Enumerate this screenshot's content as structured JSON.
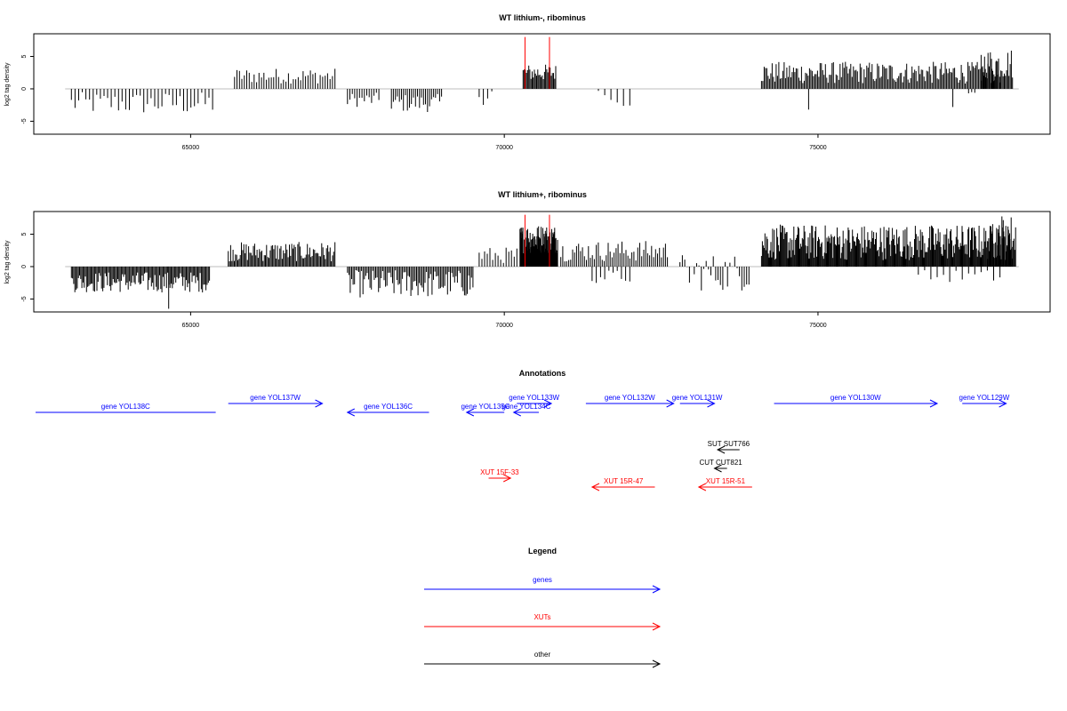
{
  "chart_data": [
    {
      "type": "bar",
      "title": "WT lithium-, ribominus",
      "ylabel": "log2 tag density",
      "xlim": [
        62500,
        78700
      ],
      "ylim": [
        -7,
        8.5
      ],
      "xticks": [
        65000,
        70000,
        75000
      ],
      "yticks": [
        -5,
        0,
        5
      ],
      "baseline": 0,
      "highlight_color": "#ff0000",
      "bar_color": "#000000",
      "highlights": [
        {
          "x": 70330,
          "y": 8
        },
        {
          "x": 70720,
          "y": 8
        }
      ],
      "segments": [
        {
          "start": 63100,
          "end": 65350,
          "count": 40,
          "min": -4,
          "max": -0.5
        },
        {
          "start": 65700,
          "end": 67300,
          "count": 42,
          "min": 0.8,
          "max": 3.2
        },
        {
          "start": 67500,
          "end": 68000,
          "count": 14,
          "min": -2.8,
          "max": -0.6
        },
        {
          "start": 68200,
          "end": 69000,
          "count": 26,
          "min": -3.6,
          "max": -0.8
        },
        {
          "start": 69600,
          "end": 69800,
          "count": 4,
          "min": -2.5,
          "max": 1.5
        },
        {
          "start": 70300,
          "end": 70820,
          "count": 30,
          "min": 1.2,
          "max": 3.8
        },
        {
          "start": 71500,
          "end": 71600,
          "count": 2,
          "min": -1,
          "max": 1
        },
        {
          "start": 71700,
          "end": 72000,
          "count": 4,
          "min": -2.8,
          "max": -1
        },
        {
          "start": 74100,
          "end": 77900,
          "count": 180,
          "min": 0.8,
          "max": 4.2
        },
        {
          "start": 74850,
          "end": 74850,
          "count": 1,
          "min": -3.2,
          "max": -3.2
        },
        {
          "start": 77150,
          "end": 77150,
          "count": 1,
          "min": -2.8,
          "max": -2.8
        },
        {
          "start": 77400,
          "end": 77500,
          "count": 3,
          "min": -1,
          "max": -0.5
        },
        {
          "start": 77600,
          "end": 78100,
          "count": 28,
          "min": 1.5,
          "max": 6.3
        }
      ]
    },
    {
      "type": "bar",
      "title": "WT lithium+, ribominus",
      "ylabel": "log2 tag density",
      "xlim": [
        62500,
        78700
      ],
      "ylim": [
        -7,
        8.5
      ],
      "xticks": [
        65000,
        70000,
        75000
      ],
      "yticks": [
        -5,
        0,
        5
      ],
      "baseline": 0,
      "highlight_color": "#ff0000",
      "bar_color": "#000000",
      "highlights": [
        {
          "x": 70330,
          "y": 8
        },
        {
          "x": 70720,
          "y": 8
        }
      ],
      "segments": [
        {
          "start": 63100,
          "end": 65300,
          "count": 120,
          "min": -4,
          "max": -0.8
        },
        {
          "start": 64650,
          "end": 64650,
          "count": 1,
          "min": -6.5,
          "max": -6.5
        },
        {
          "start": 65600,
          "end": 67300,
          "count": 90,
          "min": 0.8,
          "max": 3.8
        },
        {
          "start": 67500,
          "end": 69500,
          "count": 90,
          "min": -4.8,
          "max": -0.5
        },
        {
          "start": 69600,
          "end": 70200,
          "count": 15,
          "min": 0.5,
          "max": 3
        },
        {
          "start": 70250,
          "end": 70850,
          "count": 90,
          "min": 2,
          "max": 6.5
        },
        {
          "start": 70900,
          "end": 72600,
          "count": 55,
          "min": 0.8,
          "max": 4
        },
        {
          "start": 71400,
          "end": 72000,
          "count": 10,
          "min": -2.6,
          "max": -0.5
        },
        {
          "start": 72800,
          "end": 73900,
          "count": 30,
          "min": -3.8,
          "max": 2
        },
        {
          "start": 74100,
          "end": 78150,
          "count": 300,
          "min": 1,
          "max": 6.5
        },
        {
          "start": 77700,
          "end": 78100,
          "count": 20,
          "min": 3,
          "max": 8.2
        },
        {
          "start": 76600,
          "end": 77900,
          "count": 14,
          "min": -2.5,
          "max": -0.5
        }
      ]
    }
  ],
  "annotations": {
    "title": "Annotations",
    "xlim": [
      62500,
      78700
    ],
    "features": [
      {
        "label": "gene YOL138C",
        "kind": "gene",
        "start": 62500,
        "end": 65400,
        "strand": "none",
        "row": 1,
        "color": "#0000ff"
      },
      {
        "label": "gene YOL137W",
        "kind": "gene",
        "start": 65600,
        "end": 67100,
        "strand": "+",
        "row": 0,
        "color": "#0000ff"
      },
      {
        "label": "gene YOL136C",
        "kind": "gene",
        "start": 67500,
        "end": 68800,
        "strand": "-",
        "row": 1,
        "color": "#0000ff"
      },
      {
        "label": "gene YOL135C",
        "kind": "gene",
        "start": 69400,
        "end": 70000,
        "strand": "-",
        "row": 1,
        "color": "#0000ff"
      },
      {
        "label": "gene YOL134C",
        "kind": "gene",
        "start": 70150,
        "end": 70550,
        "strand": "-",
        "row": 1,
        "color": "#0000ff"
      },
      {
        "label": "gene YOL133W",
        "kind": "gene",
        "start": 70200,
        "end": 70750,
        "strand": "+",
        "row": 0,
        "color": "#0000ff"
      },
      {
        "label": "gene YOL132W",
        "kind": "gene",
        "start": 71300,
        "end": 72700,
        "strand": "+",
        "row": 0,
        "color": "#0000ff"
      },
      {
        "label": "gene YOL131W",
        "kind": "gene",
        "start": 72800,
        "end": 73350,
        "strand": "+",
        "row": 0,
        "color": "#0000ff"
      },
      {
        "label": "gene YOL130W",
        "kind": "gene",
        "start": 74300,
        "end": 76900,
        "strand": "+",
        "row": 0,
        "color": "#0000ff"
      },
      {
        "label": "gene YOL129W",
        "kind": "gene",
        "start": 77300,
        "end": 78000,
        "strand": "+",
        "row": 0,
        "color": "#0000ff"
      },
      {
        "label": "SUT SUT766",
        "kind": "other",
        "start": 73400,
        "end": 73750,
        "strand": "-",
        "row": 2,
        "color": "#000000"
      },
      {
        "label": "CUT CUT821",
        "kind": "other",
        "start": 73350,
        "end": 73550,
        "strand": "-",
        "row": 3,
        "color": "#000000"
      },
      {
        "label": "XUT 15F-33",
        "kind": "xut",
        "start": 69750,
        "end": 70100,
        "strand": "+",
        "row": 4,
        "color": "#ff0000"
      },
      {
        "label": "XUT 15R-47",
        "kind": "xut",
        "start": 71400,
        "end": 72400,
        "strand": "-",
        "row": 5,
        "color": "#ff0000"
      },
      {
        "label": "XUT 15R-51",
        "kind": "xut",
        "start": 73100,
        "end": 73950,
        "strand": "-",
        "row": 5,
        "color": "#ff0000"
      }
    ]
  },
  "legend": {
    "title": "Legend",
    "items": [
      {
        "label": "genes",
        "color": "#0000ff"
      },
      {
        "label": "XUTs",
        "color": "#ff0000"
      },
      {
        "label": "other",
        "color": "#000000"
      }
    ]
  }
}
